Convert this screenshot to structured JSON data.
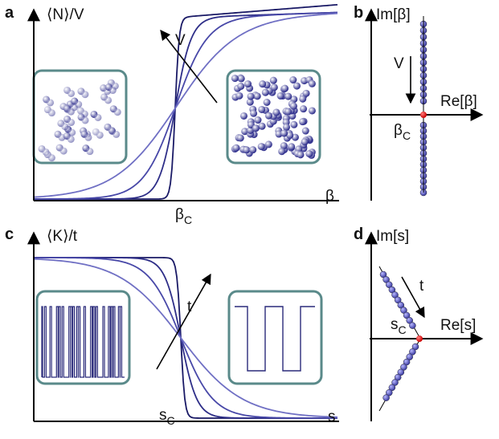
{
  "panels": [
    {
      "label": "a",
      "y_axis": "⟨N⟩/V",
      "x_axis": "β",
      "arrow": "V",
      "critical": {
        "main": "β",
        "sub": "C"
      }
    },
    {
      "label": "b",
      "y_axis": "Im[β]",
      "x_axis": "Re[β]",
      "arrow": "V",
      "critical": {
        "main": "β",
        "sub": "C"
      }
    },
    {
      "label": "c",
      "y_axis": "⟨K⟩/t",
      "x_axis": "s",
      "arrow": "t",
      "critical": {
        "main": "s",
        "sub": "C"
      }
    },
    {
      "label": "d",
      "y_axis": "Im[s]",
      "x_axis": "Re[s]",
      "arrow": "t",
      "critical": {
        "main": "s",
        "sub": "C"
      }
    }
  ]
}
